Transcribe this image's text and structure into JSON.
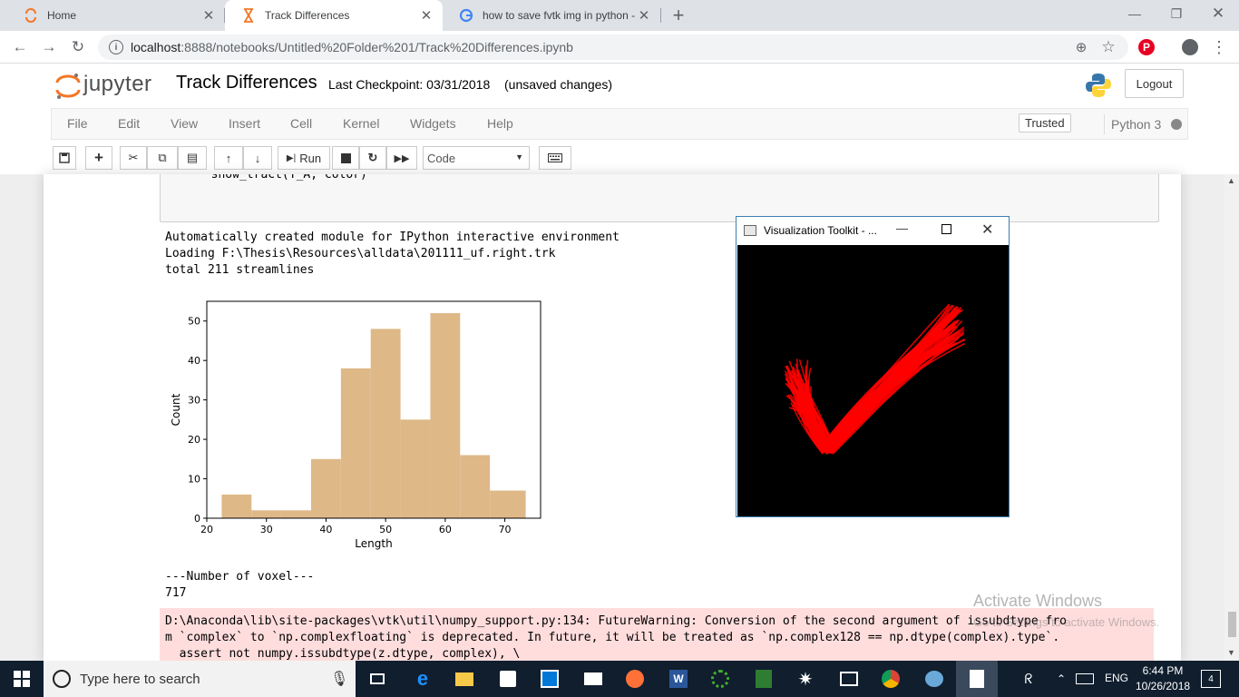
{
  "browser": {
    "tabs": [
      {
        "title": "Home",
        "active": false
      },
      {
        "title": "Track Differences",
        "active": true
      },
      {
        "title": "how to save fvtk img in python -",
        "active": false
      }
    ],
    "url_host": "localhost",
    "url_rest": ":8888/notebooks/Untitled%20Folder%201/Track%20Differences.ipynb"
  },
  "jupyter": {
    "logo_text": "jupyter",
    "notebook_title": "Track Differences",
    "checkpoint": "Last Checkpoint: 03/31/2018",
    "unsaved": "(unsaved changes)",
    "logout": "Logout",
    "menu": [
      "File",
      "Edit",
      "View",
      "Insert",
      "Cell",
      "Kernel",
      "Widgets",
      "Help"
    ],
    "trusted": "Trusted",
    "kernel": "Python 3",
    "run_label": "Run",
    "cell_type": "Code"
  },
  "cell": {
    "code_line": "  show_tract(T_A, color)",
    "output_lines": [
      "Automatically created module for IPython interactive environment",
      "Loading F:\\Thesis\\Resources\\alldata\\201111_uf.right.trk",
      "total 211 streamlines"
    ],
    "voxel_header": "---Number of voxel---",
    "voxel_value": "717",
    "warning_lines": [
      "D:\\Anaconda\\lib\\site-packages\\vtk\\util\\numpy_support.py:134: FutureWarning: Conversion of the second argument of issubdtype fro",
      "m `complex` to `np.complexfloating` is deprecated. In future, it will be treated as `np.complex128 == np.dtype(complex).type`.",
      "  assert not numpy.issubdtype(z.dtype, complex), \\"
    ]
  },
  "chart_data": {
    "type": "bar",
    "title": "",
    "xlabel": "Length",
    "ylabel": "Count",
    "bins": [
      [
        22.5,
        27.5
      ],
      [
        27.5,
        32.5
      ],
      [
        32.5,
        37.5
      ],
      [
        37.5,
        42.5
      ],
      [
        42.5,
        47.5
      ],
      [
        47.5,
        52.5
      ],
      [
        52.5,
        57.5
      ],
      [
        57.5,
        62.5
      ],
      [
        62.5,
        67.5
      ],
      [
        67.5,
        73.5
      ]
    ],
    "values": [
      6,
      2,
      2,
      15,
      38,
      48,
      25,
      52,
      16,
      7
    ],
    "xlim": [
      20,
      76
    ],
    "ylim": [
      0,
      55
    ],
    "xticks": [
      20,
      30,
      40,
      50,
      60,
      70
    ],
    "yticks": [
      0,
      10,
      20,
      30,
      40,
      50
    ],
    "bar_color": "#deb887"
  },
  "vtk_window": {
    "title": "Visualization Toolkit - ...",
    "stroke_color": "#ff0000"
  },
  "overlay": {
    "activate_title": "Activate Windows",
    "activate_sub": "Go to Settings to activate Windows."
  },
  "taskbar": {
    "search_placeholder": "Type here to search",
    "language": "ENG",
    "time": "6:44 PM",
    "date": "10/26/2018",
    "notification_count": "4"
  }
}
